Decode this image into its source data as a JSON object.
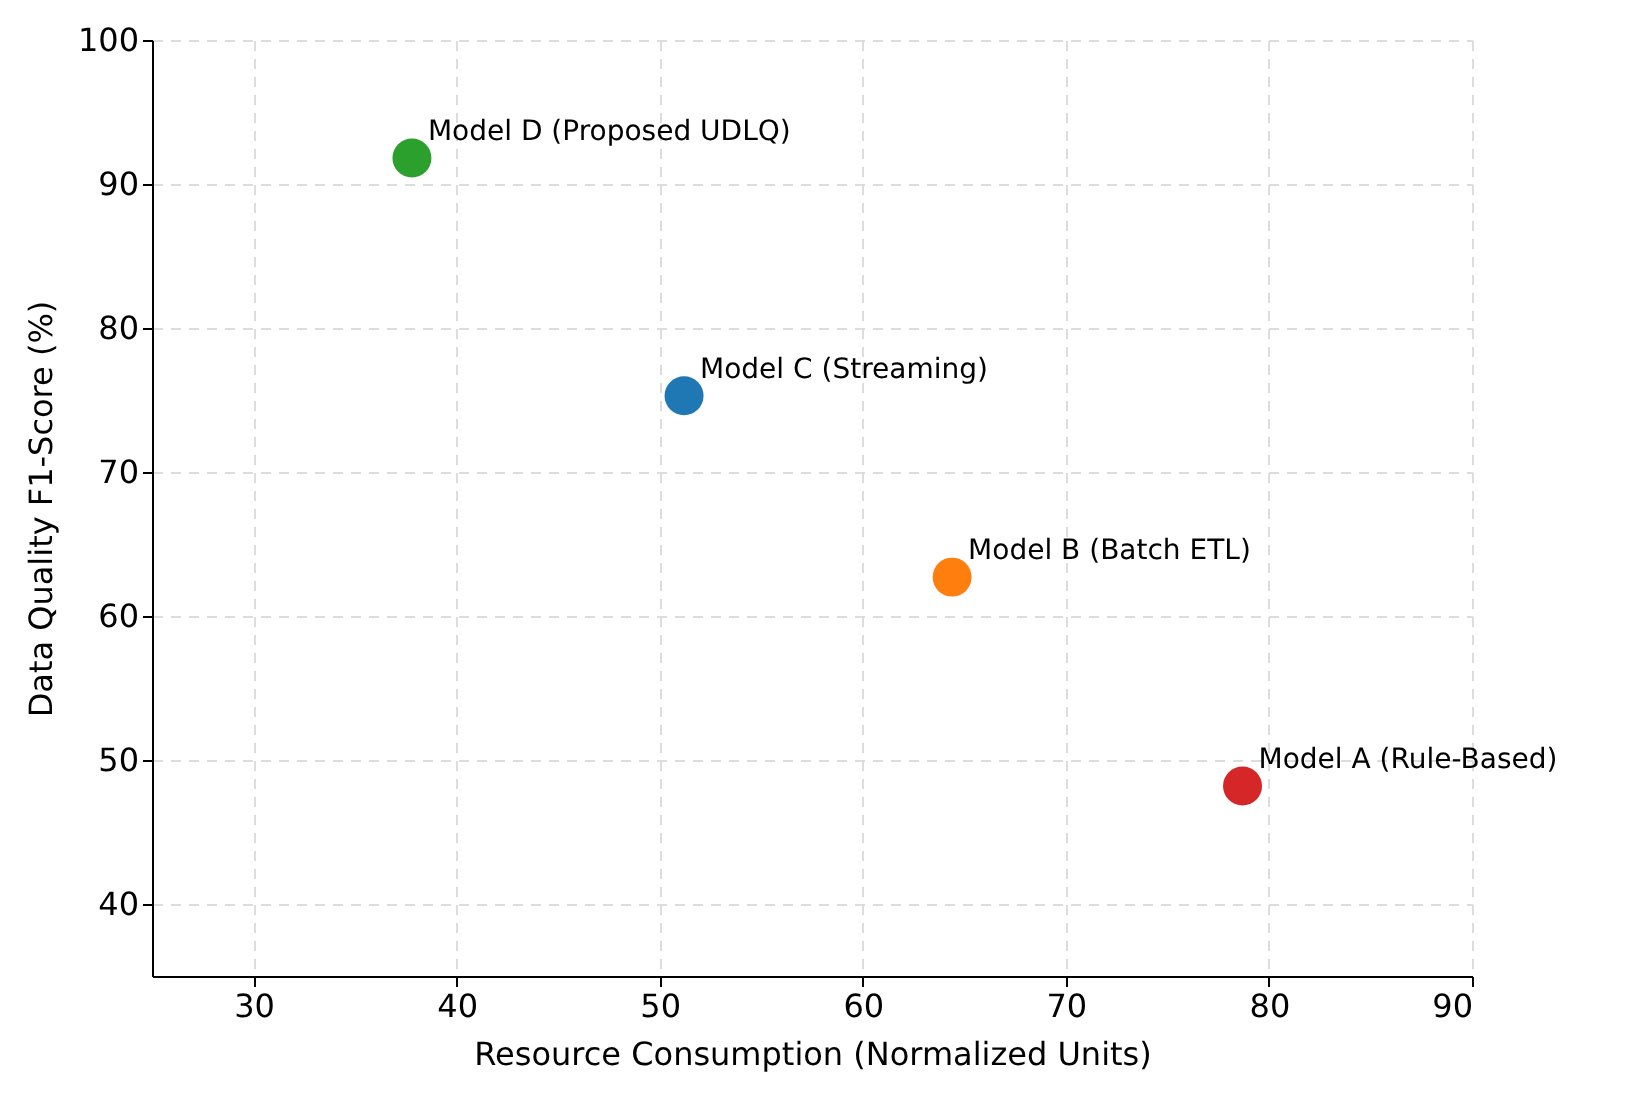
{
  "chart_data": {
    "type": "scatter",
    "xlabel": "Resource Consumption (Normalized Units)",
    "ylabel": "Data Quality F1-Score (%)",
    "series": [
      {
        "name": "Model A (Rule-Based)",
        "color": "#d62728",
        "x": [
          78.7
        ],
        "values": [
          48.2
        ]
      },
      {
        "name": "Model B (Batch ETL)",
        "color": "#ff7f0e",
        "x": [
          64.4
        ],
        "values": [
          62.7
        ]
      },
      {
        "name": "Model C (Streaming)",
        "color": "#1f77b4",
        "x": [
          51.2
        ],
        "values": [
          75.3
        ]
      },
      {
        "name": "Model D (Proposed UDLQ)",
        "color": "#2ca02c",
        "x": [
          37.8
        ],
        "values": [
          91.8
        ]
      }
    ],
    "xlim": [
      25,
      90
    ],
    "xticks": [
      30,
      40,
      50,
      60,
      70,
      80,
      90
    ],
    "ylim": [
      35,
      100
    ],
    "yticks": [
      40,
      50,
      60,
      70,
      80,
      90,
      100
    ],
    "grid": true,
    "marker": "circle",
    "legend": false
  }
}
